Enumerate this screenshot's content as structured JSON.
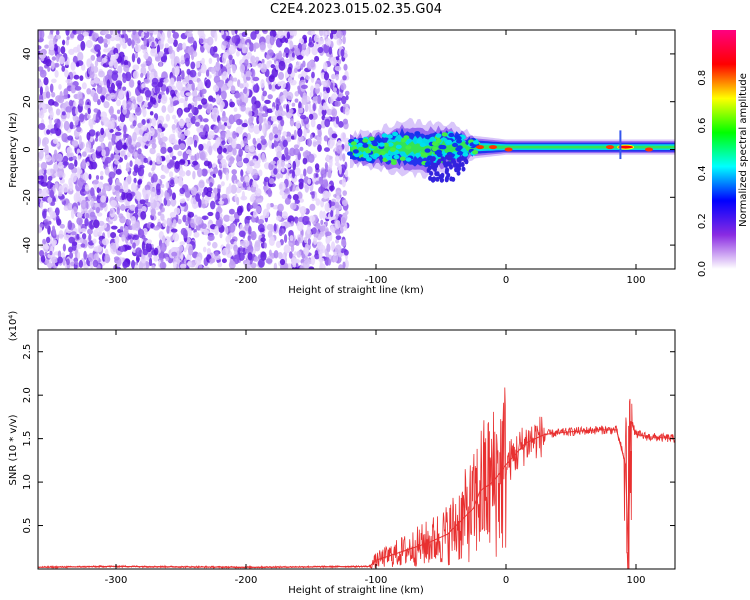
{
  "title": "C2E4.2023.015.02.35.G04",
  "chart_data": [
    {
      "type": "heatmap",
      "title": "C2E4.2023.015.02.35.G04",
      "xlabel": "Height of straight line (km)",
      "ylabel": "Frequency (Hz)",
      "xlim": [
        -360,
        130
      ],
      "ylim": [
        -50,
        50
      ],
      "x_ticks": [
        -300,
        -200,
        -100,
        0,
        100
      ],
      "y_ticks": [
        -40,
        -20,
        0,
        20,
        40
      ],
      "x_tick_labels": [
        "-300",
        "-200",
        "-100",
        "0",
        "100"
      ],
      "y_tick_labels": [
        "-40",
        "-20",
        "0",
        "20",
        "40"
      ],
      "noise_region_x": [
        -360,
        -122
      ],
      "signal_band": [
        {
          "x": -120,
          "center": 0,
          "halfwidth": 4
        },
        {
          "x": -100,
          "center": 0,
          "halfwidth": 5
        },
        {
          "x": -80,
          "center": 1,
          "halfwidth": 7
        },
        {
          "x": -60,
          "center": 0,
          "halfwidth": 7
        },
        {
          "x": -40,
          "center": 1,
          "halfwidth": 6
        },
        {
          "x": -25,
          "center": 1,
          "halfwidth": 3
        },
        {
          "x": 0,
          "center": 1,
          "halfwidth": 2
        },
        {
          "x": 50,
          "center": 1,
          "halfwidth": 2
        },
        {
          "x": 130,
          "center": 1,
          "halfwidth": 2
        }
      ],
      "colorbar": {
        "label": "Normalized spectral amplitude",
        "range": [
          0.0,
          1.0
        ],
        "ticks": [
          0.0,
          0.2,
          0.4,
          0.6,
          0.8
        ],
        "tick_labels": [
          "0.0",
          "0.2",
          "0.4",
          "0.6",
          "0.8"
        ],
        "colors": [
          "#ffffff",
          "#8a2be2",
          "#0000ff",
          "#00ffff",
          "#00ff00",
          "#ffff00",
          "#ff0000",
          "#ff0080"
        ]
      }
    },
    {
      "type": "line",
      "xlabel": "Height of straight line (km)",
      "ylabel": "SNR (10 * v/v)",
      "scale_label": "(x10⁴)",
      "xlim": [
        -360,
        130
      ],
      "ylim": [
        0.0,
        2.75
      ],
      "x_ticks": [
        -300,
        -200,
        -100,
        0,
        100
      ],
      "y_ticks": [
        0.5,
        1.0,
        1.5,
        2.0,
        2.5
      ],
      "x_tick_labels": [
        "-300",
        "-200",
        "-100",
        "0",
        "100"
      ],
      "y_tick_labels": [
        "0.5",
        "1.0",
        "1.5",
        "2.0",
        "2.5"
      ],
      "color": "#e83030",
      "x": [
        -360,
        -300,
        -200,
        -105,
        -100,
        -80,
        -60,
        -45,
        -35,
        -25,
        -20,
        -10,
        0,
        15,
        30,
        50,
        70,
        85,
        92,
        94,
        96,
        100,
        110,
        130
      ],
      "y": [
        0.02,
        0.03,
        0.02,
        0.03,
        0.1,
        0.2,
        0.3,
        0.4,
        0.55,
        0.7,
        0.9,
        1.0,
        1.2,
        1.45,
        1.55,
        1.58,
        1.6,
        1.6,
        1.2,
        0.2,
        1.7,
        1.55,
        1.52,
        1.5
      ]
    }
  ]
}
